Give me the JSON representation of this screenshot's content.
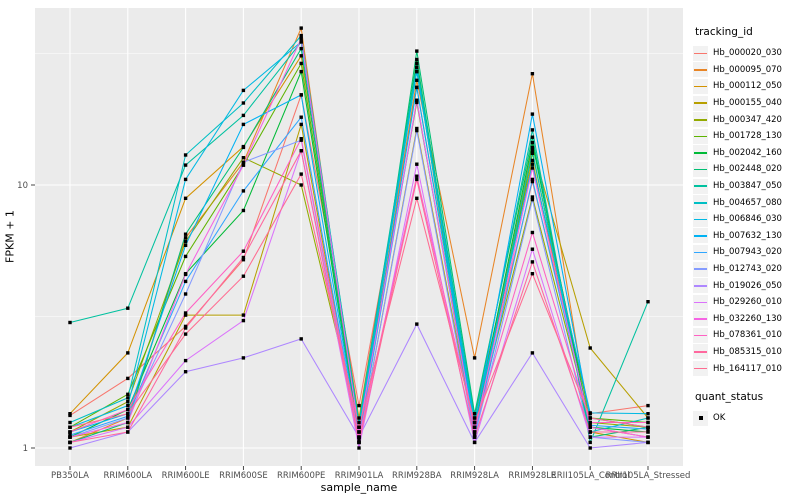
{
  "figure": {
    "bg": "#FFFFFF",
    "panel_bg": "#EBEBEB",
    "grid_color": "#FFFFFF",
    "axis_text_color": "#4D4D4D",
    "tick_color": "#333333"
  },
  "chart_data": {
    "type": "line",
    "title": "",
    "xlabel": "sample_name",
    "ylabel": "FPKM + 1",
    "y_scale": "log10",
    "y_ticks": [
      "1",
      "10"
    ],
    "ylim": [
      0.85,
      47
    ],
    "grid": "on",
    "legend_position": "right",
    "categories": [
      "PB350LA",
      "RRIM600LA",
      "RRIM600LE",
      "RRIM600SE",
      "RRIM600PE",
      "RRIM901LA",
      "RRIM928BA",
      "RRIM928LA",
      "RRIM928LE",
      "RRII105LA_Control",
      "RRII105LA_Stressed"
    ],
    "legend": {
      "title": "tracking_id"
    },
    "legend2": {
      "title": "quant_status",
      "items": [
        {
          "label": "OK",
          "shape": "square",
          "color": "#000000"
        }
      ]
    },
    "points": {
      "shape": "square",
      "color": "#000000",
      "size": 3.4
    },
    "series": [
      {
        "name": "Hb_000020_030",
        "color": "#F8766D",
        "values": [
          1.33,
          1.84,
          2.9,
          5.2,
          22,
          1.45,
          23.5,
          1.25,
          10.3,
          1.35,
          1.45
        ]
      },
      {
        "name": "Hb_000095_070",
        "color": "#E88526",
        "values": [
          1.05,
          1.3,
          6.3,
          12.2,
          39.5,
          1.1,
          25.0,
          2.2,
          26.5,
          1.2,
          1.1
        ]
      },
      {
        "name": "Hb_000112_050",
        "color": "#D39200",
        "values": [
          1.35,
          2.3,
          8.9,
          14.0,
          31,
          1.3,
          27.0,
          1.3,
          12.4,
          1.15,
          1.05
        ]
      },
      {
        "name": "Hb_000155_040",
        "color": "#B79F00",
        "values": [
          1.1,
          1.2,
          3.2,
          3.2,
          17,
          1.05,
          16.4,
          1.15,
          13.9,
          2.4,
          1.3
        ]
      },
      {
        "name": "Hb_000347_420",
        "color": "#93AA00",
        "values": [
          1.15,
          1.5,
          6.1,
          12.7,
          10.0,
          1.2,
          20.6,
          1.2,
          9.0,
          1.25,
          1.2
        ]
      },
      {
        "name": "Hb_001728_130",
        "color": "#5EB300",
        "values": [
          1.2,
          1.6,
          5.35,
          11.9,
          29,
          1.15,
          28.0,
          1.1,
          13.2,
          1.3,
          1.25
        ]
      },
      {
        "name": "Hb_002042_160",
        "color": "#00BA38",
        "values": [
          1.1,
          1.4,
          4.6,
          8.0,
          27,
          1.1,
          30.0,
          1.2,
          14.5,
          1.2,
          1.15
        ]
      },
      {
        "name": "Hb_002448_020",
        "color": "#00BF74",
        "values": [
          1.05,
          1.25,
          6.5,
          13.9,
          33,
          1.05,
          32.3,
          1.35,
          15.2,
          1.1,
          1.2
        ]
      },
      {
        "name": "Hb_003847_050",
        "color": "#00C19F",
        "values": [
          3.0,
          3.4,
          11.9,
          18.4,
          35,
          1.25,
          29.0,
          1.3,
          16.2,
          1.05,
          3.6
        ]
      },
      {
        "name": "Hb_004657_080",
        "color": "#00BFC4",
        "values": [
          1.25,
          1.55,
          13.0,
          20.5,
          37,
          1.2,
          28.0,
          1.15,
          13.5,
          1.15,
          1.3
        ]
      },
      {
        "name": "Hb_006846_030",
        "color": "#00B9E3",
        "values": [
          1.2,
          1.45,
          10.5,
          22.9,
          35,
          1.15,
          27.0,
          1.25,
          12.0,
          1.36,
          1.35
        ]
      },
      {
        "name": "Hb_007632_130",
        "color": "#00B2F3",
        "values": [
          1.15,
          1.35,
          5.9,
          17.0,
          22,
          1.1,
          23.5,
          1.2,
          18.6,
          1.3,
          1.2
        ]
      },
      {
        "name": "Hb_007943_020",
        "color": "#2FA6FF",
        "values": [
          1.12,
          1.32,
          4.3,
          9.5,
          18.1,
          1.08,
          21.0,
          1.12,
          10.5,
          1.22,
          1.18
        ]
      },
      {
        "name": "Hb_012743_020",
        "color": "#859BFF",
        "values": [
          1.1,
          1.3,
          3.85,
          12.2,
          14.8,
          1.05,
          16.1,
          1.1,
          8.8,
          1.1,
          1.05
        ]
      },
      {
        "name": "Hb_019026_050",
        "color": "#AE87FF",
        "values": [
          1.0,
          1.15,
          1.95,
          2.2,
          2.6,
          1.1,
          2.96,
          1.05,
          2.3,
          1.0,
          1.05
        ]
      },
      {
        "name": "Hb_029260_010",
        "color": "#DB72FB",
        "values": [
          1.05,
          1.2,
          2.15,
          3.05,
          13.5,
          1.0,
          12.0,
          1.05,
          5.7,
          1.1,
          1.1
        ]
      },
      {
        "name": "Hb_032260_130",
        "color": "#F564E3",
        "values": [
          1.1,
          1.25,
          4.57,
          11.9,
          36,
          1.15,
          21.0,
          1.15,
          11.6,
          1.2,
          1.1
        ]
      },
      {
        "name": "Hb_078361_010",
        "color": "#FF61C3",
        "values": [
          1.15,
          1.4,
          3.26,
          5.6,
          15,
          1.1,
          10.8,
          1.2,
          6.6,
          1.25,
          1.25
        ]
      },
      {
        "name": "Hb_085315_010",
        "color": "#FF689E",
        "values": [
          1.05,
          1.15,
          2.86,
          5.3,
          13.5,
          1.05,
          10.5,
          1.1,
          5.1,
          1.15,
          1.15
        ]
      },
      {
        "name": "Hb_164117_010",
        "color": "#FF6C91",
        "values": [
          1.2,
          1.35,
          2.71,
          4.5,
          11,
          1.2,
          8.9,
          1.25,
          4.6,
          1.3,
          1.2
        ]
      }
    ]
  }
}
